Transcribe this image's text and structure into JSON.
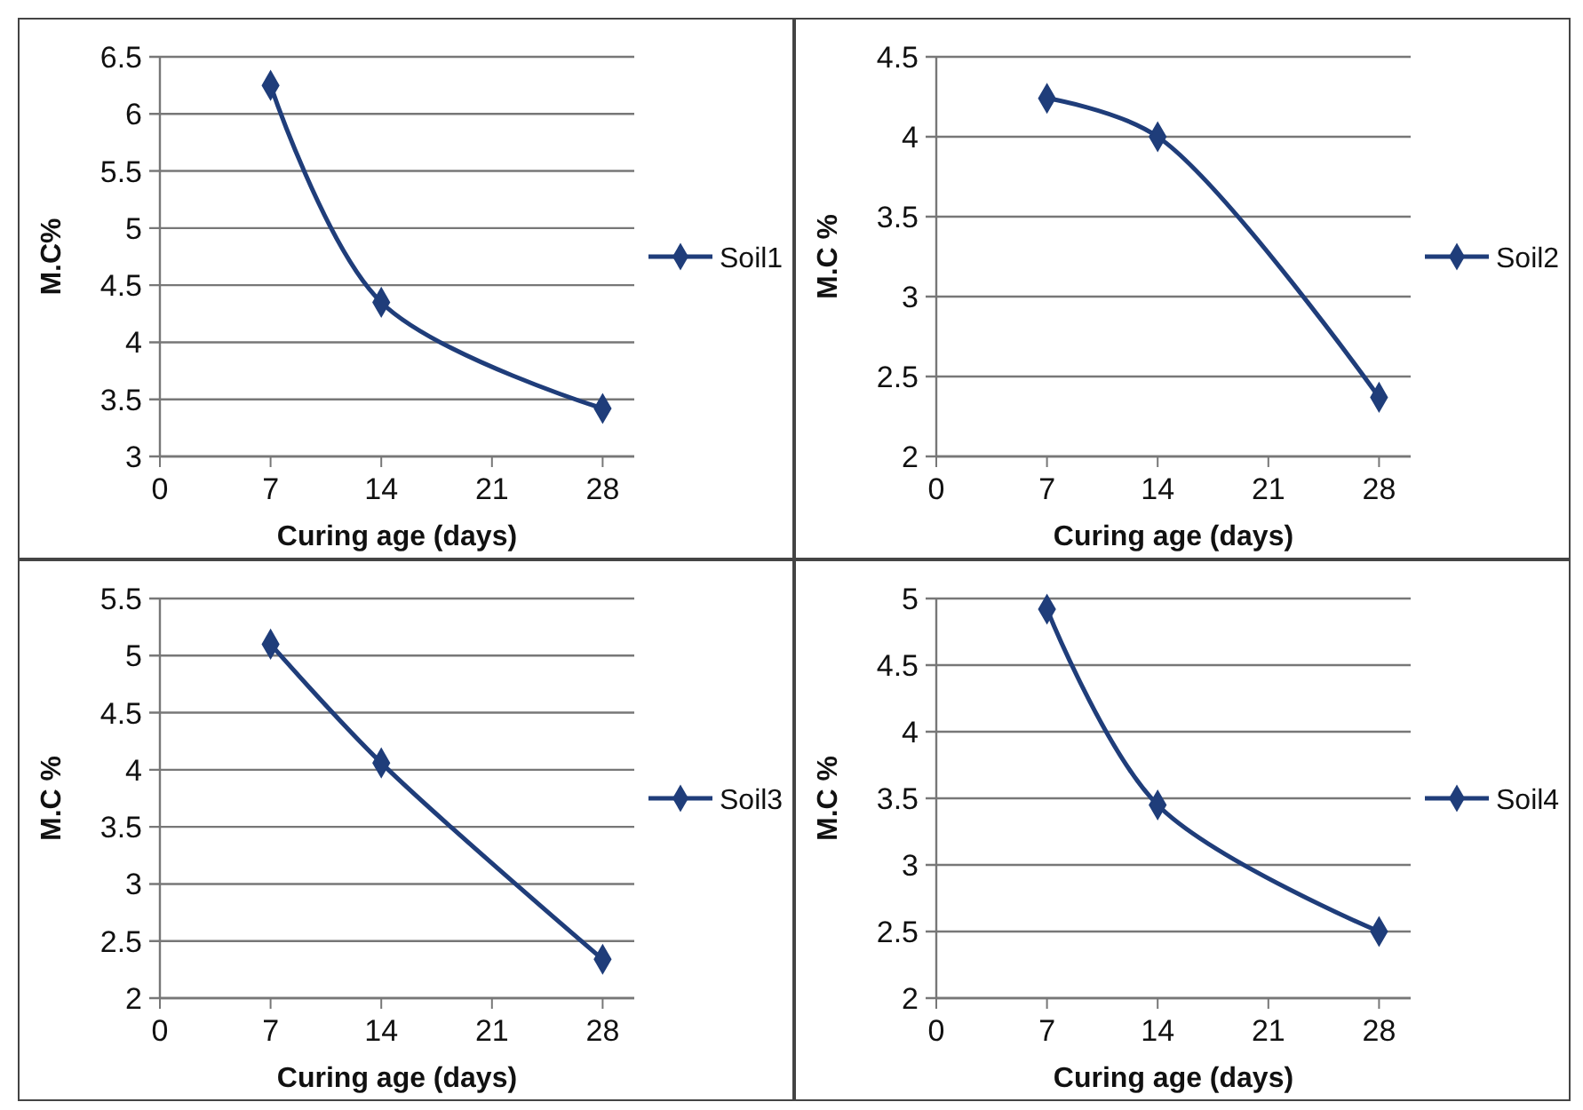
{
  "chart_data": [
    {
      "type": "line",
      "xlabel": "Curing age (days)",
      "ylabel": "M.C%",
      "x": [
        7,
        14,
        28
      ],
      "xlim": [
        0,
        30
      ],
      "xticks": [
        0,
        7,
        14,
        21,
        28
      ],
      "ylim": [
        3,
        6.5
      ],
      "yticks": [
        3,
        3.5,
        4,
        4.5,
        5,
        5.5,
        6,
        6.5
      ],
      "grid": "y",
      "legend": "right",
      "marker": "diamond",
      "line_style": "solid",
      "series": [
        {
          "name": "Soil1",
          "color": "#1f3d7a",
          "values": [
            6.25,
            4.35,
            3.42
          ]
        }
      ]
    },
    {
      "type": "line",
      "xlabel": "Curing age (days)",
      "ylabel": "M.C %",
      "x": [
        7,
        14,
        28
      ],
      "xlim": [
        0,
        30
      ],
      "xticks": [
        0,
        7,
        14,
        21,
        28
      ],
      "ylim": [
        2,
        4.5
      ],
      "yticks": [
        2,
        2.5,
        3,
        3.5,
        4,
        4.5
      ],
      "grid": "y",
      "legend": "right",
      "marker": "diamond",
      "line_style": "solid",
      "series": [
        {
          "name": "Soil2",
          "color": "#1f3d7a",
          "values": [
            4.24,
            4.0,
            2.37
          ]
        }
      ]
    },
    {
      "type": "line",
      "xlabel": "Curing age (days)",
      "ylabel": "M.C %",
      "x": [
        7,
        14,
        28
      ],
      "xlim": [
        0,
        30
      ],
      "xticks": [
        0,
        7,
        14,
        21,
        28
      ],
      "ylim": [
        2,
        5.5
      ],
      "yticks": [
        2,
        2.5,
        3,
        3.5,
        4,
        4.5,
        5,
        5.5
      ],
      "grid": "y",
      "legend": "right",
      "marker": "diamond",
      "line_style": "solid",
      "series": [
        {
          "name": "Soil3",
          "color": "#1f3d7a",
          "values": [
            5.1,
            4.06,
            2.34
          ]
        }
      ]
    },
    {
      "type": "line",
      "xlabel": "Curing age (days)",
      "ylabel": "M.C %",
      "x": [
        7,
        14,
        28
      ],
      "xlim": [
        0,
        30
      ],
      "xticks": [
        0,
        7,
        14,
        21,
        28
      ],
      "ylim": [
        2,
        5
      ],
      "yticks": [
        2,
        2.5,
        3,
        3.5,
        4,
        4.5,
        5
      ],
      "grid": "y",
      "legend": "right",
      "marker": "diamond",
      "line_style": "solid",
      "series": [
        {
          "name": "Soil4",
          "color": "#1f3d7a",
          "values": [
            4.92,
            3.45,
            2.5
          ]
        }
      ]
    }
  ]
}
